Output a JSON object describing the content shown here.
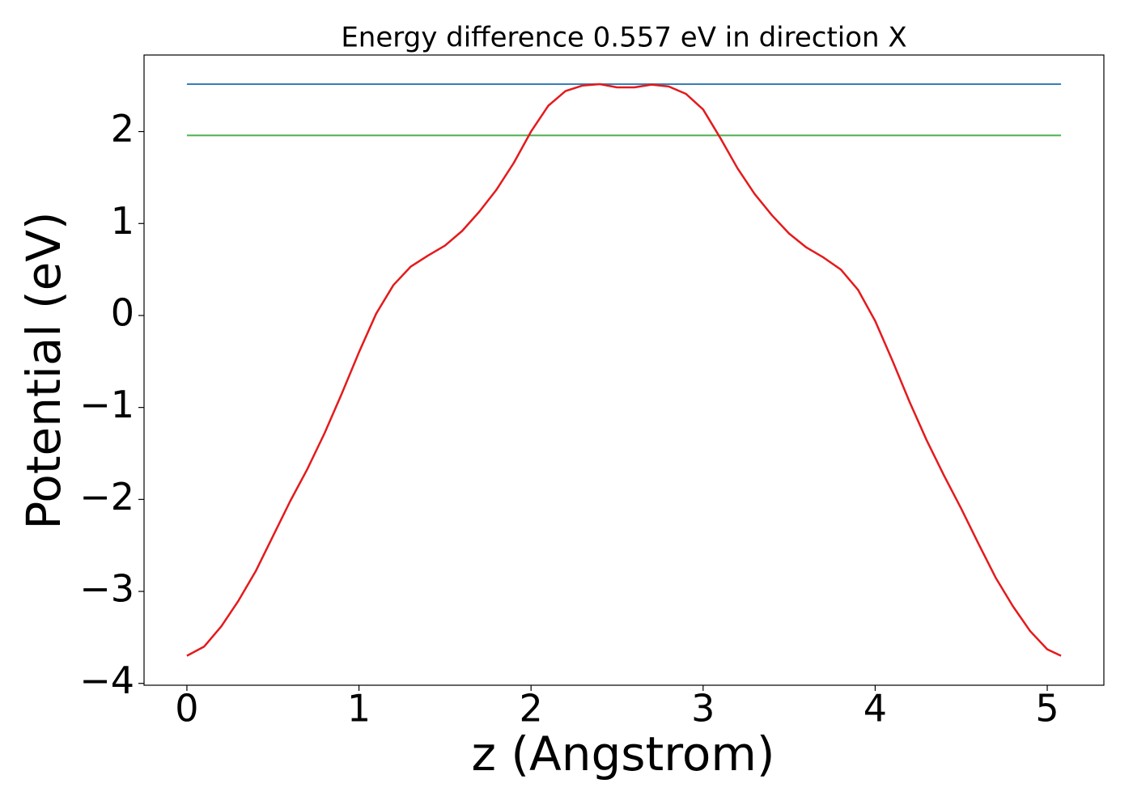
{
  "chart_data": {
    "type": "line",
    "title": "Energy difference 0.557 eV in direction X",
    "x_label": "z (Angstrom)",
    "y_label": "Potential (eV)",
    "x": [
      0,
      0.1,
      0.2,
      0.3,
      0.4,
      0.5,
      0.6,
      0.7,
      0.8,
      0.9,
      1.0,
      1.1,
      1.2,
      1.3,
      1.4,
      1.5,
      1.6,
      1.7,
      1.8,
      1.9,
      2.0,
      2.1,
      2.2,
      2.3,
      2.4,
      2.5,
      2.6,
      2.7,
      2.8,
      2.9,
      3.0,
      3.1,
      3.2,
      3.3,
      3.4,
      3.5,
      3.6,
      3.7,
      3.8,
      3.9,
      4.0,
      4.1,
      4.2,
      4.3,
      4.4,
      4.5,
      4.6,
      4.7,
      4.8,
      4.9,
      5.0,
      5.08
    ],
    "series": [
      {
        "color": "#e41a1c",
        "values": [
          -3.7,
          -3.6,
          -3.38,
          -3.1,
          -2.78,
          -2.4,
          -2.02,
          -1.67,
          -1.28,
          -0.85,
          -0.4,
          0.02,
          0.33,
          0.53,
          0.65,
          0.76,
          0.92,
          1.13,
          1.37,
          1.66,
          2.0,
          2.28,
          2.44,
          2.5,
          2.515,
          2.48,
          2.48,
          2.51,
          2.49,
          2.41,
          2.24,
          1.93,
          1.6,
          1.32,
          1.09,
          0.89,
          0.74,
          0.63,
          0.5,
          0.28,
          -0.06,
          -0.49,
          -0.94,
          -1.36,
          -1.74,
          -2.1,
          -2.48,
          -2.85,
          -3.16,
          -3.43,
          -3.63,
          -3.7
        ]
      }
    ],
    "hlines": [
      {
        "value": 2.515,
        "color": "#377eb8"
      },
      {
        "value": 1.958,
        "color": "#4daf4a"
      }
    ],
    "xlim": [
      -0.249,
      5.329
    ],
    "ylim": [
      -4.02,
      2.832
    ],
    "xticks": [
      0,
      1,
      2,
      3,
      4,
      5
    ],
    "yticks": [
      {
        "value": -4,
        "label": "−4"
      },
      {
        "value": -3,
        "label": "−3"
      },
      {
        "value": -2,
        "label": "−2"
      },
      {
        "value": -1,
        "label": "−1"
      },
      0,
      1,
      2
    ]
  }
}
